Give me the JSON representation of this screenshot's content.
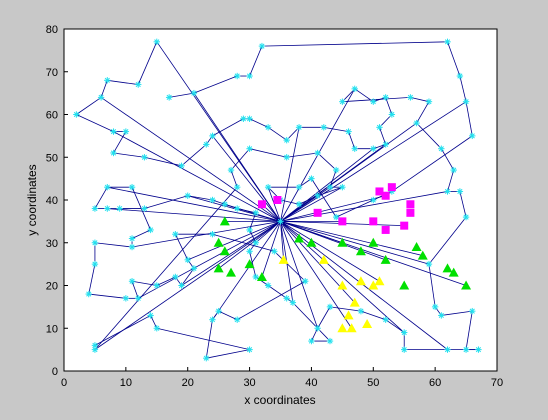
{
  "chart_data": {
    "type": "scatter",
    "xlabel": "x coordinates",
    "ylabel": "y coordinates",
    "xlim": [
      0,
      70
    ],
    "ylim": [
      0,
      80
    ],
    "xticks": [
      0,
      10,
      20,
      30,
      40,
      50,
      60,
      70
    ],
    "yticks": [
      0,
      10,
      20,
      30,
      40,
      50,
      60,
      70,
      80
    ],
    "grid": false,
    "colors": {
      "figure_bg": "#c8c8c8",
      "axes_bg": "#ffffff",
      "route": "#00008b",
      "node": "#22e0ee",
      "cluster_magenta": "#ff00ff",
      "cluster_green": "#00e000",
      "cluster_yellow": "#ffff00"
    },
    "depot": [
      35,
      35
    ],
    "route_nodes": [
      [
        15,
        77
      ],
      [
        32,
        76
      ],
      [
        62,
        77
      ],
      [
        64,
        69
      ],
      [
        65,
        63
      ],
      [
        66,
        55
      ],
      [
        61,
        52
      ],
      [
        63,
        47
      ],
      [
        62,
        42
      ],
      [
        64,
        42
      ],
      [
        65,
        36
      ],
      [
        2,
        60
      ],
      [
        6,
        64
      ],
      [
        7,
        68
      ],
      [
        12,
        67
      ],
      [
        17,
        64
      ],
      [
        21,
        65
      ],
      [
        28,
        69
      ],
      [
        30,
        69
      ],
      [
        29,
        59
      ],
      [
        24,
        55
      ],
      [
        23,
        53
      ],
      [
        30,
        52
      ],
      [
        19,
        48
      ],
      [
        8,
        56
      ],
      [
        10,
        56
      ],
      [
        13,
        50
      ],
      [
        8,
        51
      ],
      [
        7,
        43
      ],
      [
        11,
        43
      ],
      [
        9,
        38
      ],
      [
        13,
        38
      ],
      [
        7,
        38
      ],
      [
        5,
        38
      ],
      [
        5,
        30
      ],
      [
        5,
        25
      ],
      [
        11,
        29
      ],
      [
        11,
        31
      ],
      [
        14,
        33
      ],
      [
        18,
        32
      ],
      [
        20,
        26
      ],
      [
        21,
        24
      ],
      [
        18,
        22
      ],
      [
        15,
        20
      ],
      [
        19,
        20
      ],
      [
        14,
        13
      ],
      [
        15,
        10
      ],
      [
        10,
        17
      ],
      [
        12,
        17
      ],
      [
        11,
        21
      ],
      [
        4,
        18
      ],
      [
        5,
        6
      ],
      [
        5,
        5
      ],
      [
        23,
        3
      ],
      [
        30,
        5
      ],
      [
        40,
        7
      ],
      [
        37,
        16
      ],
      [
        36,
        17
      ],
      [
        33,
        20
      ],
      [
        25,
        14
      ],
      [
        24,
        12
      ],
      [
        28,
        12
      ],
      [
        31,
        22
      ],
      [
        30,
        28
      ],
      [
        31,
        30
      ],
      [
        30,
        33
      ],
      [
        24,
        32
      ],
      [
        24,
        40
      ],
      [
        26,
        39
      ],
      [
        28,
        38
      ],
      [
        31,
        37
      ],
      [
        28,
        43
      ],
      [
        33,
        43
      ],
      [
        38,
        39
      ],
      [
        38,
        43
      ],
      [
        40,
        45
      ],
      [
        43,
        43
      ],
      [
        41,
        41
      ],
      [
        36,
        50
      ],
      [
        36,
        54
      ],
      [
        38,
        57
      ],
      [
        41,
        51
      ],
      [
        42,
        57
      ],
      [
        45,
        63
      ],
      [
        47,
        66
      ],
      [
        50,
        63
      ],
      [
        52,
        64
      ],
      [
        53,
        60
      ],
      [
        52,
        53
      ],
      [
        51,
        57
      ],
      [
        46,
        56
      ],
      [
        47,
        52
      ],
      [
        57,
        58
      ],
      [
        56,
        64
      ],
      [
        59,
        63
      ],
      [
        50,
        40
      ],
      [
        45,
        43
      ],
      [
        44,
        47
      ],
      [
        39,
        21
      ],
      [
        43,
        15
      ],
      [
        41,
        10
      ],
      [
        43,
        7
      ],
      [
        48,
        14
      ],
      [
        52,
        12
      ],
      [
        55,
        9
      ],
      [
        55,
        5
      ],
      [
        60,
        15
      ],
      [
        61,
        13
      ],
      [
        62,
        5
      ],
      [
        65,
        5
      ],
      [
        67,
        5
      ],
      [
        66,
        14
      ],
      [
        59,
        25
      ],
      [
        44,
        36
      ],
      [
        27,
        47
      ],
      [
        33,
        57
      ],
      [
        50,
        52
      ],
      [
        53,
        42
      ],
      [
        35,
        40
      ],
      [
        34,
        28
      ],
      [
        20,
        41
      ],
      [
        30,
        59
      ]
    ],
    "series": [
      {
        "marker": "square",
        "color": "#ff00ff",
        "points": [
          [
            32,
            39
          ],
          [
            34.5,
            40
          ],
          [
            41,
            37
          ],
          [
            45,
            35
          ],
          [
            50,
            35
          ],
          [
            51,
            42
          ],
          [
            52,
            41
          ],
          [
            53,
            43
          ],
          [
            52,
            33
          ],
          [
            55,
            34
          ],
          [
            56,
            37
          ],
          [
            56,
            39
          ]
        ]
      },
      {
        "marker": "triangle",
        "color": "#00e000",
        "points": [
          [
            26,
            35
          ],
          [
            25,
            30
          ],
          [
            26,
            28
          ],
          [
            25,
            24
          ],
          [
            27,
            23
          ],
          [
            30,
            25
          ],
          [
            32,
            22
          ],
          [
            38,
            31
          ],
          [
            40,
            30
          ],
          [
            45,
            30
          ],
          [
            48,
            28
          ],
          [
            50,
            30
          ],
          [
            52,
            26
          ],
          [
            55,
            20
          ],
          [
            57,
            29
          ],
          [
            58,
            27
          ],
          [
            62,
            24
          ],
          [
            63,
            23
          ],
          [
            65,
            20
          ]
        ]
      },
      {
        "marker": "triangle",
        "color": "#ffff00",
        "points": [
          [
            35.5,
            26
          ],
          [
            42,
            26
          ],
          [
            45,
            20
          ],
          [
            47,
            16
          ],
          [
            48,
            21
          ],
          [
            50,
            20
          ],
          [
            51,
            21
          ],
          [
            46,
            13
          ],
          [
            45,
            10
          ],
          [
            46.5,
            10
          ],
          [
            49,
            11
          ]
        ]
      }
    ]
  }
}
